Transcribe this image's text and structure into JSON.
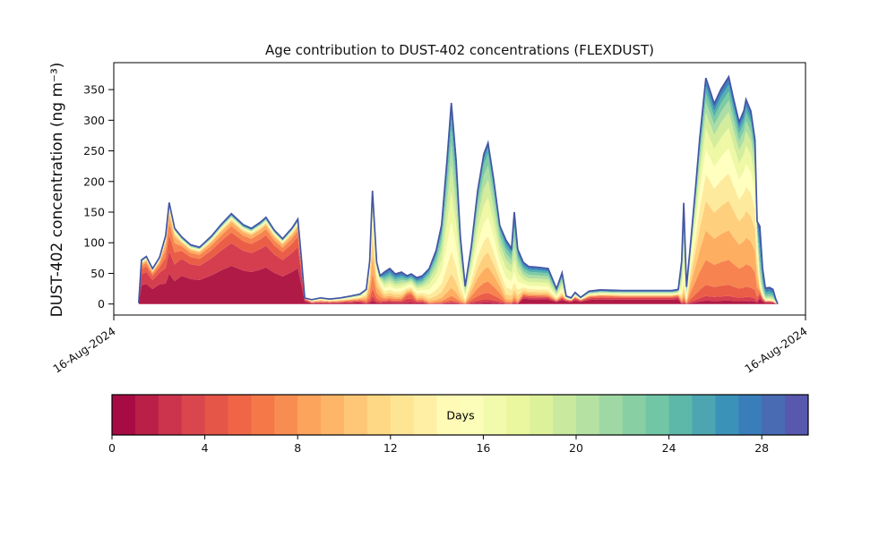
{
  "chart_data": {
    "type": "area",
    "stacked": true,
    "title": "Age contribution to DUST-402 concentrations (FLEXDUST)",
    "ylabel": "DUST-402 concentration (ng m⁻³)",
    "xlabel": "",
    "x_tick_labels": [
      "16-Aug-2024",
      "16-Aug-2024"
    ],
    "y_ticks": [
      0,
      50,
      100,
      150,
      200,
      250,
      300,
      350
    ],
    "ylim": [
      -18,
      394
    ],
    "x_axis_note": "x values are fractions of the time axis between the two date ticks",
    "outline_color": "#4456a4",
    "x": [
      0.036,
      0.04,
      0.047,
      0.056,
      0.066,
      0.075,
      0.08,
      0.088,
      0.098,
      0.111,
      0.124,
      0.141,
      0.155,
      0.17,
      0.187,
      0.199,
      0.212,
      0.22,
      0.232,
      0.244,
      0.258,
      0.266,
      0.271,
      0.276,
      0.286,
      0.299,
      0.312,
      0.328,
      0.343,
      0.356,
      0.365,
      0.37,
      0.374,
      0.38,
      0.385,
      0.391,
      0.399,
      0.407,
      0.416,
      0.424,
      0.43,
      0.438,
      0.446,
      0.456,
      0.466,
      0.474,
      0.482,
      0.488,
      0.495,
      0.501,
      0.508,
      0.517,
      0.526,
      0.535,
      0.541,
      0.549,
      0.558,
      0.567,
      0.575,
      0.579,
      0.584,
      0.592,
      0.6,
      0.613,
      0.628,
      0.64,
      0.648,
      0.654,
      0.661,
      0.667,
      0.675,
      0.687,
      0.703,
      0.736,
      0.774,
      0.807,
      0.816,
      0.821,
      0.824,
      0.828,
      0.834,
      0.841,
      0.847,
      0.856,
      0.863,
      0.868,
      0.878,
      0.889,
      0.896,
      0.904,
      0.911,
      0.914,
      0.921,
      0.927,
      0.93,
      0.934,
      0.938,
      0.942,
      0.948,
      0.953,
      0.957,
      0.96
    ],
    "total": [
      2,
      72,
      78,
      58,
      76,
      112,
      166,
      124,
      110,
      97,
      93,
      111,
      130,
      148,
      130,
      124,
      134,
      142,
      121,
      107,
      125,
      139,
      78,
      10,
      7,
      10,
      8,
      10,
      13,
      16,
      24,
      70,
      185,
      68,
      46,
      52,
      58,
      49,
      52,
      46,
      49,
      43,
      46,
      58,
      88,
      130,
      240,
      330,
      235,
      110,
      29,
      95,
      185,
      245,
      263,
      205,
      128,
      105,
      91,
      150,
      90,
      68,
      61,
      60,
      58,
      25,
      51,
      13,
      10,
      19,
      11,
      21,
      23,
      22,
      22,
      22,
      24,
      70,
      165,
      28,
      100,
      190,
      270,
      369,
      345,
      327,
      351,
      371,
      335,
      297,
      316,
      334,
      315,
      268,
      135,
      127,
      58,
      26,
      27,
      24,
      8,
      0
    ],
    "profile": [
      "A",
      "A",
      "A",
      "A",
      "A",
      "A2",
      "A2",
      "A2",
      "A",
      "A",
      "A",
      "A",
      "A",
      "A",
      "A",
      "A",
      "A",
      "A",
      "A",
      "A",
      "A",
      "A",
      "A",
      "A",
      "G",
      "G",
      "G",
      "G",
      "G",
      "G",
      "C",
      "C",
      "C",
      "C",
      "C",
      "D",
      "D",
      "D",
      "D",
      "D2",
      "D2",
      "D",
      "D",
      "E",
      "E",
      "E",
      "E",
      "E",
      "E",
      "E",
      "E",
      "F",
      "F",
      "F",
      "F",
      "F",
      "F",
      "E",
      "E",
      "J",
      "E",
      "H",
      "H",
      "H",
      "H",
      "H",
      "H",
      "I",
      "I",
      "I",
      "I",
      "I",
      "I",
      "I",
      "I",
      "I",
      "I",
      "J",
      "J",
      "J",
      "K",
      "K",
      "K",
      "K",
      "K",
      "K",
      "K",
      "K",
      "K",
      "K",
      "K",
      "K",
      "K",
      "K",
      "K",
      "L",
      "L",
      "L",
      "L",
      "L",
      "L",
      "L"
    ],
    "age_profiles": {
      "A": [
        0.42,
        0.25,
        0.12,
        0.07,
        0.045,
        0.02,
        0.012,
        0.01,
        0.008,
        0.007,
        0.007,
        0.007,
        0.004,
        0.009,
        0.008
      ],
      "A2": [
        0.3,
        0.22,
        0.16,
        0.12,
        0.08,
        0.04,
        0.02,
        0.012,
        0.008,
        0.007,
        0.006,
        0.006,
        0.006,
        0.007,
        0.006
      ],
      "G": [
        0.16,
        0.12,
        0.1,
        0.09,
        0.08,
        0.08,
        0.07,
        0.06,
        0.05,
        0.05,
        0.04,
        0.04,
        0.03,
        0.02,
        0.02
      ],
      "C": [
        0.03,
        0.04,
        0.07,
        0.13,
        0.16,
        0.15,
        0.12,
        0.09,
        0.07,
        0.05,
        0.04,
        0.02,
        0.015,
        0.01,
        0.005
      ],
      "D": [
        0.04,
        0.04,
        0.04,
        0.05,
        0.06,
        0.08,
        0.09,
        0.1,
        0.09,
        0.08,
        0.08,
        0.07,
        0.07,
        0.06,
        0.05
      ],
      "D2": [
        0.05,
        0.13,
        0.14,
        0.07,
        0.05,
        0.06,
        0.07,
        0.08,
        0.07,
        0.06,
        0.05,
        0.05,
        0.05,
        0.04,
        0.03
      ],
      "E": [
        0.005,
        0.005,
        0.01,
        0.02,
        0.04,
        0.07,
        0.11,
        0.15,
        0.15,
        0.13,
        0.1,
        0.08,
        0.06,
        0.04,
        0.025
      ],
      "F": [
        0.01,
        0.02,
        0.04,
        0.07,
        0.09,
        0.09,
        0.1,
        0.12,
        0.12,
        0.11,
        0.09,
        0.07,
        0.04,
        0.02,
        0.01
      ],
      "H": [
        0.13,
        0.05,
        0.03,
        0.03,
        0.04,
        0.05,
        0.07,
        0.09,
        0.1,
        0.1,
        0.09,
        0.08,
        0.06,
        0.05,
        0.03
      ],
      "I": [
        0.32,
        0.13,
        0.08,
        0.05,
        0.04,
        0.04,
        0.04,
        0.04,
        0.04,
        0.04,
        0.04,
        0.03,
        0.03,
        0.04,
        0.04
      ],
      "J": [
        0.01,
        0.01,
        0.02,
        0.03,
        0.04,
        0.05,
        0.08,
        0.11,
        0.13,
        0.13,
        0.12,
        0.1,
        0.08,
        0.06,
        0.03
      ],
      "K": [
        0.015,
        0.02,
        0.05,
        0.11,
        0.13,
        0.13,
        0.12,
        0.11,
        0.09,
        0.07,
        0.05,
        0.04,
        0.03,
        0.02,
        0.015
      ],
      "L": [
        0.07,
        0.05,
        0.03,
        0.02,
        0.02,
        0.02,
        0.03,
        0.04,
        0.05,
        0.07,
        0.09,
        0.12,
        0.14,
        0.14,
        0.11
      ]
    },
    "age_bins": [
      {
        "label": "0-2 days",
        "color": "#b01a46"
      },
      {
        "label": "2-4 days",
        "color": "#d53e4f"
      },
      {
        "label": "4-6 days",
        "color": "#ea5e48"
      },
      {
        "label": "6-8 days",
        "color": "#f78350"
      },
      {
        "label": "8-10 days",
        "color": "#fdae61"
      },
      {
        "label": "10-12 days",
        "color": "#fecf7d"
      },
      {
        "label": "12-14 days",
        "color": "#feea9c"
      },
      {
        "label": "14-16 days",
        "color": "#ffffbf"
      },
      {
        "label": "16-18 days",
        "color": "#eef8a5"
      },
      {
        "label": "18-20 days",
        "color": "#d3ed9c"
      },
      {
        "label": "20-22 days",
        "color": "#abdda4"
      },
      {
        "label": "22-24 days",
        "color": "#7dcba5"
      },
      {
        "label": "24-26 days",
        "color": "#55afad"
      },
      {
        "label": "26-28 days",
        "color": "#3288bd"
      },
      {
        "label": "28-30 days",
        "color": "#4f62ab"
      }
    ],
    "colorbar": {
      "label": "Days",
      "min": 0,
      "max": 30,
      "ticks": [
        0,
        4,
        8,
        12,
        16,
        20,
        24,
        28
      ],
      "segment_colors": [
        "#a70b44",
        "#ba1f48",
        "#cc334d",
        "#da464d",
        "#e55649",
        "#ef6545",
        "#f57848",
        "#f88d52",
        "#fca35c",
        "#fdb668",
        "#fec777",
        "#fed884",
        "#fee594",
        "#ffefa5",
        "#fffab6",
        "#fbfdb8",
        "#f2faab",
        "#eaf79e",
        "#dcf19a",
        "#c8e99e",
        "#b5e1a2",
        "#9fd8a4",
        "#88cfa4",
        "#71c6a5",
        "#5db8a9",
        "#4ca5b1",
        "#3b92b9",
        "#397eba",
        "#486bb4",
        "#5758ae"
      ]
    }
  }
}
